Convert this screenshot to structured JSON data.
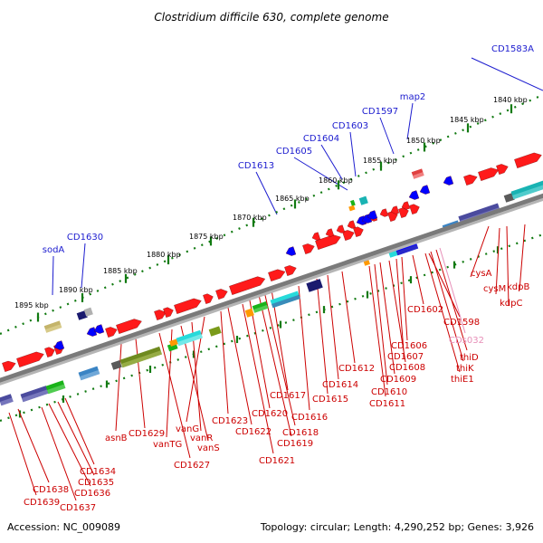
{
  "title": "Clostridium difficile 630, complete genome",
  "footer": {
    "accession": "Accession: NC_009089",
    "summary": "Topology: circular; Length: 4,290,252 bp; Genes: 3,926"
  },
  "colors": {
    "backbone_dark": "#7a7a7a",
    "backbone_light": "#b5b5b5",
    "ruler_green": "#117a11",
    "forward_gene_red": "#ff0000",
    "reverse_gene_blue": "#0000ff",
    "label_blue": "#1c1ccf",
    "label_red": "#cc0000",
    "label_pink": "#e78fb8"
  },
  "kbp_labels": [
    "1840 kbp",
    "1845 kbp",
    "1850 kbp",
    "1855 kbp",
    "1860 kbp",
    "1865 kbp",
    "1870 kbp",
    "1875 kbp",
    "1880 kbp",
    "1885 kbp",
    "1890 kbp",
    "1895 kbp"
  ],
  "upper_gene_labels": [
    "CD1583A",
    "map2",
    "CD1597",
    "CD1603",
    "CD1604",
    "CD1605",
    "CD1613",
    "CD1630",
    "sodA"
  ],
  "lower_gene_labels": [
    "cysA",
    "cysM",
    "kdpB",
    "kdpC",
    "CD1602",
    "CD1598",
    "CDs032",
    "thiD",
    "thiK",
    "thiE1",
    "CD1606",
    "CD1607",
    "CD1608",
    "CD1609",
    "CD1610",
    "CD1611",
    "CD1612",
    "CD1614",
    "CD1615",
    "CD1616",
    "CD1617",
    "CD1618",
    "CD1619",
    "CD1620",
    "CD1621",
    "CD1622",
    "CD1623",
    "vanG",
    "vanR",
    "vanS",
    "vanTG",
    "CD1627",
    "CD1629",
    "asnB",
    "CD1634",
    "CD1635",
    "CD1636",
    "CD1637",
    "CD1638",
    "CD1639"
  ]
}
